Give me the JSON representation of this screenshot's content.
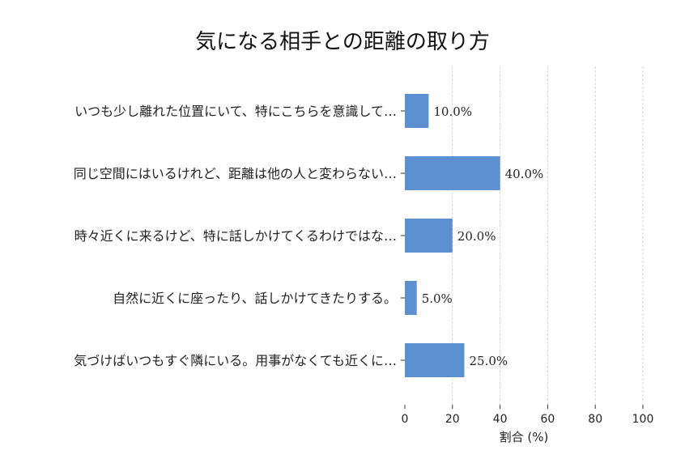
{
  "chart_data": {
    "type": "bar",
    "orientation": "horizontal",
    "title": "気になる相手との距離の取り方",
    "xlabel": "割合 (%)",
    "ylabel": "",
    "xlim": [
      0,
      100
    ],
    "xticks": [
      0,
      20,
      40,
      60,
      80,
      100
    ],
    "grid": "vertical-dashed",
    "bar_color": "#5b8fd0",
    "categories": [
      "いつも少し離れた位置にいて、特にこちらを意識して…",
      "同じ空間にはいるけれど、距離は他の人と変わらない…",
      "時々近くに来るけど、特に話しかけてくるわけではな…",
      "自然に近くに座ったり、話しかけてきたりする。",
      "気づけばいつもすぐ隣にいる。用事がなくても近くに…"
    ],
    "values": [
      10,
      40,
      20,
      5,
      25
    ],
    "value_labels": [
      "10.0%",
      "40.0%",
      "20.0%",
      "5.0%",
      "25.0%"
    ]
  }
}
